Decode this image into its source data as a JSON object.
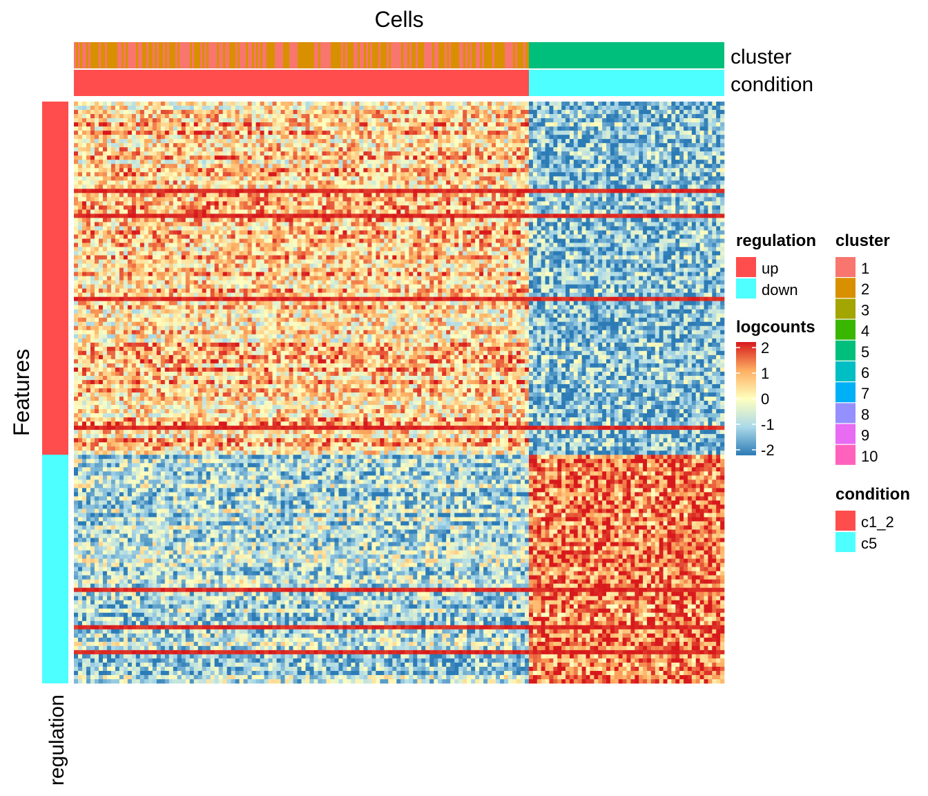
{
  "chart_data": {
    "type": "heatmap",
    "title": "Cells",
    "ylabel": "Features",
    "column_annotations": [
      {
        "name": "cluster",
        "segments": [
          {
            "value": "mixed 1/2",
            "fraction": 0.7
          },
          {
            "value": "5",
            "fraction": 0.3
          }
        ]
      },
      {
        "name": "condition",
        "segments": [
          {
            "value": "c1_2",
            "fraction": 0.7
          },
          {
            "value": "c5",
            "fraction": 0.3
          }
        ]
      }
    ],
    "row_annotation": {
      "name": "regulation",
      "segments": [
        {
          "value": "up",
          "fraction": 0.607
        },
        {
          "value": "down",
          "fraction": 0.393
        }
      ]
    },
    "color_scale": {
      "name": "logcounts",
      "range": [
        -2,
        2
      ],
      "ticks": [
        "2",
        "1",
        "0",
        "-1",
        "-2"
      ],
      "colors": [
        "#2c7bb6",
        "#abd9e9",
        "#ffffbf",
        "#fdae61",
        "#d7191c"
      ]
    },
    "group_mean_logcounts": {
      "up_rows": {
        "c1_2": 0.6,
        "c5": -1.2
      },
      "down_rows": {
        "c1_2": -0.9,
        "c5": 1.3
      }
    }
  },
  "legends": {
    "regulation": {
      "title": "regulation",
      "items": [
        {
          "label": "up",
          "color": "#ff4d4d"
        },
        {
          "label": "down",
          "color": "#4dffff"
        }
      ]
    },
    "logcounts": {
      "title": "logcounts"
    },
    "cluster": {
      "title": "cluster",
      "items": [
        {
          "label": "1",
          "color": "#f8766d"
        },
        {
          "label": "2",
          "color": "#d89000"
        },
        {
          "label": "3",
          "color": "#a3a500"
        },
        {
          "label": "4",
          "color": "#39b600"
        },
        {
          "label": "5",
          "color": "#00bf7d"
        },
        {
          "label": "6",
          "color": "#00bfc4"
        },
        {
          "label": "7",
          "color": "#00b0f6"
        },
        {
          "label": "8",
          "color": "#9590ff"
        },
        {
          "label": "9",
          "color": "#e76bf3"
        },
        {
          "label": "10",
          "color": "#ff62bc"
        }
      ]
    },
    "condition": {
      "title": "condition",
      "items": [
        {
          "label": "c1_2",
          "color": "#ff4d4d"
        },
        {
          "label": "c5",
          "color": "#4dffff"
        }
      ]
    }
  }
}
